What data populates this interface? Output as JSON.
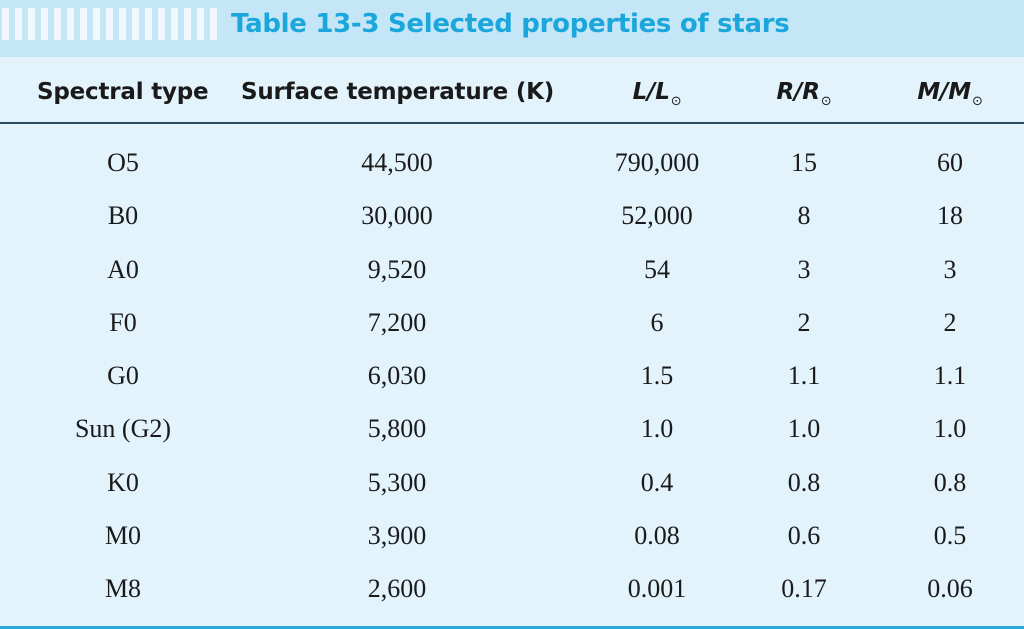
{
  "title": "Table 13-3  Selected properties of stars",
  "headers": {
    "spectral_type": "Spectral type",
    "surface_temperature": "Surface temperature (K)",
    "luminosity_main": "L/L",
    "radius_main": "R/R",
    "mass_main": "M/M",
    "sun_symbol": "⊙"
  },
  "rows": [
    {
      "type": "O5",
      "temp": "44,500",
      "lum": "790,000",
      "rad": "15",
      "mass": "60"
    },
    {
      "type": "B0",
      "temp": "30,000",
      "lum": "52,000",
      "rad": "8",
      "mass": "18"
    },
    {
      "type": "A0",
      "temp": "9,520",
      "lum": "54",
      "rad": "3",
      "mass": "3"
    },
    {
      "type": "F0",
      "temp": "7,200",
      "lum": "6",
      "rad": "2",
      "mass": "2"
    },
    {
      "type": "G0",
      "temp": "6,030",
      "lum": "1.5",
      "rad": "1.1",
      "mass": "1.1"
    },
    {
      "type": "Sun (G2)",
      "temp": "5,800",
      "lum": "1.0",
      "rad": "1.0",
      "mass": "1.0"
    },
    {
      "type": "K0",
      "temp": "5,300",
      "lum": "0.4",
      "rad": "0.8",
      "mass": "0.8"
    },
    {
      "type": "M0",
      "temp": "3,900",
      "lum": "0.08",
      "rad": "0.6",
      "mass": "0.5"
    },
    {
      "type": "M8",
      "temp": "2,600",
      "lum": "0.001",
      "rad": "0.17",
      "mass": "0.06"
    }
  ]
}
